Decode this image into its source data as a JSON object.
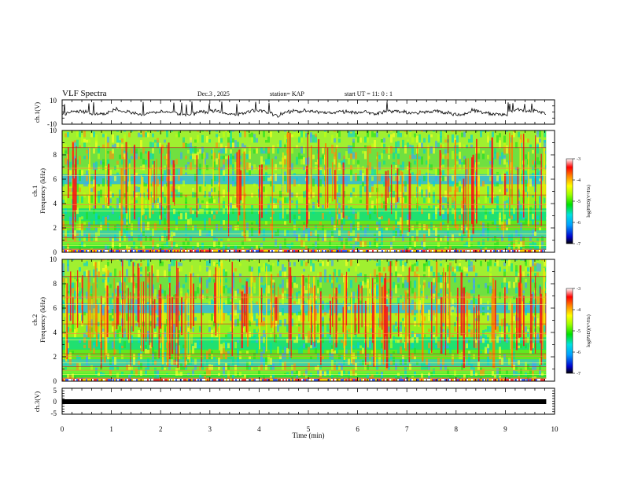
{
  "header": {
    "title": "VLF Spectra",
    "date": "Dec.3 , 2025",
    "station": "station= KAP",
    "start_ut": "start UT = 11: 0 : 1"
  },
  "chart_data": [
    {
      "id": "ch1-waveform",
      "type": "line",
      "ylabel": "ch.1(V)",
      "ylim": [
        -10,
        10
      ],
      "yticks": [
        "10",
        "-10"
      ],
      "xlim": [
        0,
        10
      ]
    },
    {
      "id": "ch1-spectrogram",
      "type": "heatmap",
      "ylabel_top": "ch.1",
      "ylabel": "Frequency (kHz)",
      "ylim": [
        0,
        10
      ],
      "yticks": [
        "0",
        "2",
        "4",
        "6",
        "8",
        "10"
      ],
      "colorbar": {
        "label": "log(PSD)(V²/Hz)",
        "range": [
          -7,
          -3
        ],
        "ticks": [
          "-3",
          "-4",
          "-5",
          "-6",
          "-7"
        ]
      }
    },
    {
      "id": "ch2-spectrogram",
      "type": "heatmap",
      "ylabel_top": "ch.2",
      "ylabel": "Frequency (kHz)",
      "ylim": [
        0,
        10
      ],
      "yticks": [
        "0",
        "2",
        "4",
        "6",
        "8",
        "10"
      ],
      "colorbar": {
        "label": "log(PSD)(V²/Hz)",
        "range": [
          -7,
          -3
        ],
        "ticks": [
          "-3",
          "-4",
          "-5",
          "-6",
          "-7"
        ]
      }
    },
    {
      "id": "ch3-waveform",
      "type": "line",
      "ylabel": "ch.3(V)",
      "ylim": [
        -5,
        5
      ],
      "yticks": [
        "5",
        "0",
        "-5"
      ],
      "series": [
        {
          "name": "ch.3",
          "constant_value": 0
        }
      ]
    }
  ],
  "x_axis": {
    "label": "Time (min)",
    "range": [
      0,
      10
    ],
    "ticks": [
      "0",
      "1",
      "2",
      "3",
      "4",
      "5",
      "6",
      "7",
      "8",
      "9",
      "10"
    ],
    "data_end": 9.83
  },
  "colors": {
    "frame": "#000000",
    "colormap": [
      "#000000",
      "#0000cc",
      "#00a0ff",
      "#00e0e0",
      "#00e000",
      "#a0ff00",
      "#ffff00",
      "#ff8000",
      "#ff0000",
      "#ffffff"
    ]
  }
}
